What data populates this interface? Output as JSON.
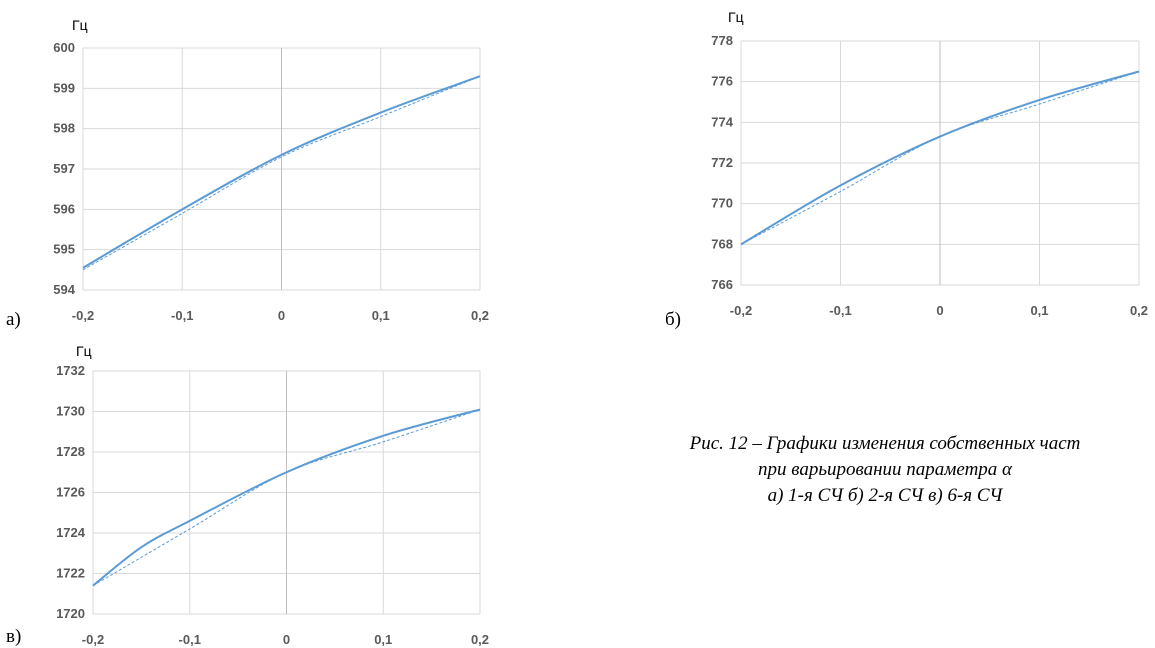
{
  "colors": {
    "series": "#5b9bd5",
    "grid": "#d9d9d9",
    "zero_axis": "#bfbfbf",
    "tick_text": "#595959"
  },
  "caption": {
    "line1": "Рис. 12 – Графики изменения собственных част",
    "line2": "при варьировании параметра α",
    "line3": "а) 1-я СЧ б) 2-я СЧ в) 6-я СЧ"
  },
  "chart_data": [
    {
      "type": "line",
      "panel_label": "а)",
      "ylabel": "Гц",
      "xlabel": "",
      "x_ticks": [
        "-0,2",
        "-0,1",
        "0",
        "0,1",
        "0,2"
      ],
      "y_ticks": [
        "594",
        "595",
        "596",
        "597",
        "598",
        "599",
        "600"
      ],
      "xlim": [
        -0.2,
        0.2
      ],
      "ylim": [
        594,
        600
      ],
      "grid": true,
      "series": [
        {
          "style": "solid",
          "x": [
            -0.2,
            -0.1,
            0,
            0.1,
            0.2
          ],
          "y": [
            594.55,
            596.0,
            597.35,
            598.4,
            599.3
          ]
        },
        {
          "style": "dashed",
          "x": [
            -0.2,
            -0.1,
            0,
            0.1,
            0.2
          ],
          "y": [
            594.5,
            595.9,
            597.3,
            598.3,
            599.3
          ]
        }
      ]
    },
    {
      "type": "line",
      "panel_label": "б)",
      "ylabel": "Гц",
      "xlabel": "",
      "x_ticks": [
        "-0,2",
        "-0,1",
        "0",
        "0,1",
        "0,2"
      ],
      "y_ticks": [
        "766",
        "768",
        "770",
        "772",
        "774",
        "776",
        "778"
      ],
      "xlim": [
        -0.2,
        0.2
      ],
      "ylim": [
        766,
        778
      ],
      "grid": true,
      "series": [
        {
          "style": "solid",
          "x": [
            -0.2,
            -0.1,
            0,
            0.1,
            0.2
          ],
          "y": [
            768.0,
            770.9,
            773.3,
            775.1,
            776.5
          ]
        },
        {
          "style": "dashed",
          "x": [
            -0.2,
            -0.1,
            0,
            0.1,
            0.2
          ],
          "y": [
            768.0,
            770.6,
            773.3,
            774.9,
            776.5
          ]
        }
      ]
    },
    {
      "type": "line",
      "panel_label": "в)",
      "ylabel": "Гц",
      "xlabel": "",
      "x_ticks": [
        "-0,2",
        "-0,1",
        "0",
        "0,1",
        "0,2"
      ],
      "y_ticks": [
        "1720",
        "1722",
        "1724",
        "1726",
        "1728",
        "1730",
        "1732"
      ],
      "xlim": [
        -0.2,
        0.2
      ],
      "ylim": [
        1720,
        1732
      ],
      "grid": true,
      "series": [
        {
          "style": "solid",
          "x": [
            -0.2,
            -0.15,
            -0.1,
            0,
            0.1,
            0.2
          ],
          "y": [
            1721.4,
            1723.3,
            1724.6,
            1727.0,
            1728.8,
            1730.1
          ]
        },
        {
          "style": "dashed",
          "x": [
            -0.2,
            -0.1,
            0,
            0.1,
            0.2
          ],
          "y": [
            1721.4,
            1724.2,
            1727.0,
            1728.5,
            1730.1
          ]
        }
      ]
    }
  ]
}
